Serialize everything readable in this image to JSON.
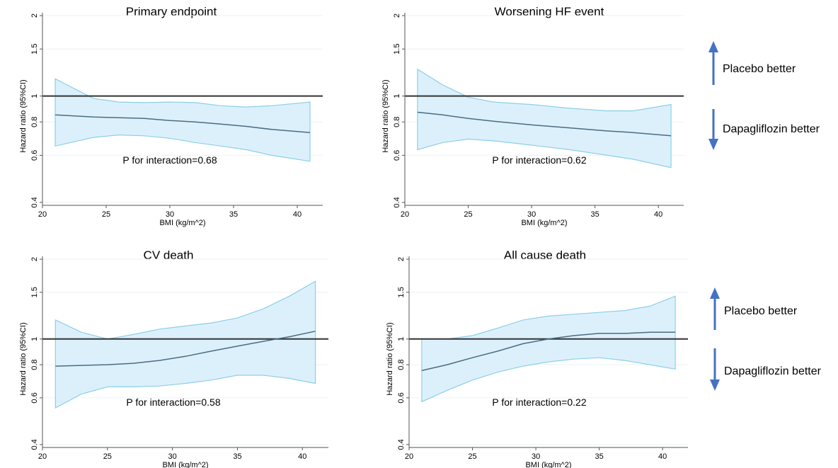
{
  "chart_data": [
    {
      "type": "area",
      "title": "Primary endpoint",
      "xlabel": "BMI (kg/m^2)",
      "ylabel": "Hazard ratio (95%CI)",
      "xlim": [
        20,
        42
      ],
      "xticks": [
        20,
        25,
        30,
        35,
        40
      ],
      "ylim": [
        0.39,
        2.05
      ],
      "yscale": "log",
      "yticks": [
        0.4,
        0.6,
        0.8,
        1,
        1.5,
        2
      ],
      "ytick_labels": [
        "0.4",
        "0.6",
        "0.8",
        "1",
        "1.5",
        "2"
      ],
      "reference_line": 1,
      "annotation": "P for interaction=0.68",
      "x": [
        21,
        24,
        26,
        28,
        30,
        32,
        34,
        36,
        38,
        41
      ],
      "series": [
        {
          "role": "estimate",
          "values": [
            0.85,
            0.835,
            0.83,
            0.825,
            0.81,
            0.8,
            0.785,
            0.77,
            0.75,
            0.73
          ]
        },
        {
          "role": "upper",
          "values": [
            1.16,
            0.98,
            0.95,
            0.945,
            0.95,
            0.945,
            0.92,
            0.91,
            0.92,
            0.95
          ]
        },
        {
          "role": "lower",
          "values": [
            0.65,
            0.7,
            0.715,
            0.71,
            0.695,
            0.67,
            0.65,
            0.63,
            0.6,
            0.57
          ]
        }
      ]
    },
    {
      "type": "area",
      "title": "Worsening HF event",
      "xlabel": "BMI (kg/m^2)",
      "ylabel": "Hazard ratio (95%CI)",
      "xlim": [
        20,
        42
      ],
      "xticks": [
        20,
        25,
        30,
        35,
        40
      ],
      "ylim": [
        0.39,
        2.05
      ],
      "yscale": "log",
      "yticks": [
        0.4,
        0.6,
        0.8,
        1,
        1.5,
        2
      ],
      "ytick_labels": [
        "0.4",
        "0.6",
        "0.8",
        "1",
        "1.5",
        "2"
      ],
      "reference_line": 1,
      "annotation": "P for interaction=0.62",
      "x": [
        21,
        23,
        25,
        27,
        30,
        33,
        36,
        38,
        41
      ],
      "series": [
        {
          "role": "estimate",
          "values": [
            0.87,
            0.85,
            0.825,
            0.805,
            0.78,
            0.76,
            0.74,
            0.73,
            0.71
          ]
        },
        {
          "role": "upper",
          "values": [
            1.26,
            1.1,
            0.99,
            0.95,
            0.93,
            0.9,
            0.88,
            0.88,
            0.93
          ]
        },
        {
          "role": "lower",
          "values": [
            0.63,
            0.67,
            0.69,
            0.68,
            0.655,
            0.63,
            0.6,
            0.58,
            0.54
          ]
        }
      ]
    },
    {
      "type": "area",
      "title": "CV death",
      "xlabel": "BMI (kg/m^2)",
      "ylabel": "Hazard ratio (95%CI)",
      "xlim": [
        20,
        42
      ],
      "xticks": [
        20,
        25,
        30,
        35,
        40
      ],
      "ylim": [
        0.39,
        2.05
      ],
      "yscale": "log",
      "yticks": [
        0.4,
        0.6,
        0.8,
        1,
        1.5,
        2
      ],
      "ytick_labels": [
        "0.4",
        "0.6",
        "0.8",
        "1",
        "1.5",
        "2"
      ],
      "reference_line": 1,
      "annotation": "P for interaction=0.58",
      "x": [
        21,
        23,
        25,
        27,
        29,
        31,
        33,
        35,
        37,
        39,
        41
      ],
      "series": [
        {
          "role": "estimate",
          "values": [
            0.79,
            0.795,
            0.8,
            0.81,
            0.83,
            0.86,
            0.9,
            0.94,
            0.98,
            1.02,
            1.07
          ]
        },
        {
          "role": "upper",
          "values": [
            1.18,
            1.06,
            1.0,
            1.04,
            1.09,
            1.12,
            1.15,
            1.2,
            1.3,
            1.45,
            1.65
          ]
        },
        {
          "role": "lower",
          "values": [
            0.55,
            0.62,
            0.66,
            0.66,
            0.665,
            0.68,
            0.7,
            0.73,
            0.73,
            0.71,
            0.68
          ]
        }
      ]
    },
    {
      "type": "area",
      "title": "All cause death",
      "xlabel": "BMI (kg/m^2)",
      "ylabel": "Hazard ratio (95%CI)",
      "xlim": [
        20,
        42
      ],
      "xticks": [
        20,
        25,
        30,
        35,
        40
      ],
      "ylim": [
        0.39,
        2.05
      ],
      "yscale": "log",
      "yticks": [
        0.4,
        0.6,
        0.8,
        1,
        1.5,
        2
      ],
      "ytick_labels": [
        "0.4",
        "0.6",
        "0.8",
        "1",
        "1.5",
        "2"
      ],
      "reference_line": 1,
      "annotation": "P for interaction=0.22",
      "x": [
        21,
        23,
        25,
        27,
        29,
        31,
        33,
        35,
        37,
        39,
        41
      ],
      "series": [
        {
          "role": "estimate",
          "values": [
            0.76,
            0.8,
            0.85,
            0.9,
            0.96,
            1.0,
            1.03,
            1.05,
            1.05,
            1.06,
            1.06
          ]
        },
        {
          "role": "upper",
          "values": [
            1.0,
            1.0,
            1.03,
            1.1,
            1.18,
            1.22,
            1.24,
            1.26,
            1.28,
            1.33,
            1.45
          ]
        },
        {
          "role": "lower",
          "values": [
            0.58,
            0.64,
            0.7,
            0.75,
            0.79,
            0.82,
            0.84,
            0.85,
            0.83,
            0.8,
            0.77
          ]
        }
      ]
    }
  ],
  "side_labels": {
    "top": {
      "placebo": "Placebo better",
      "dapagliflozin": "Dapagliflozin better"
    },
    "bottom": {
      "placebo": "Placebo better",
      "dapagliflozin": "Dapagliflozin better"
    }
  },
  "colors": {
    "band_fill": "#dcf0fc",
    "band_edge": "#8ccfe8",
    "estimate_line": "#4a6d80",
    "reference_line": "#333333",
    "axis": "#555555",
    "arrow": "#4472c4",
    "gridline": "#eaf2f7"
  }
}
